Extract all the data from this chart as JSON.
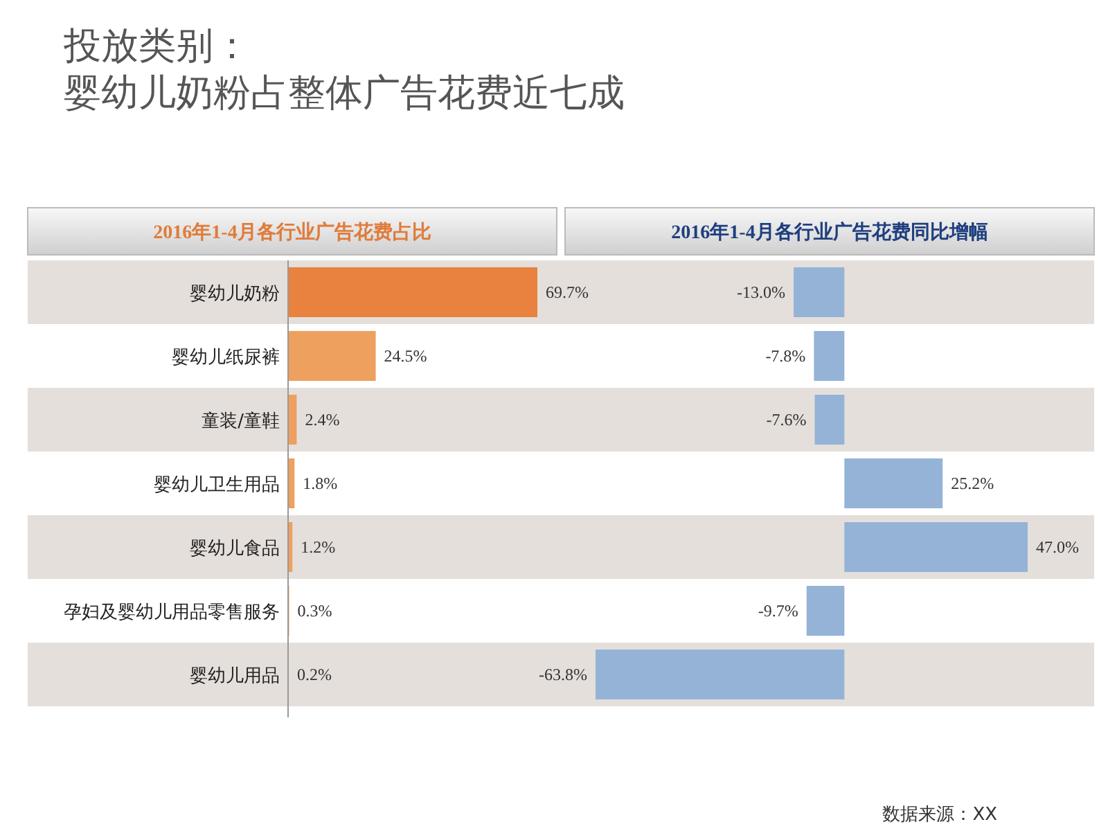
{
  "chart_data": [
    {
      "type": "bar",
      "orientation": "horizontal",
      "title": "2016年1-4月各行业广告花费占比",
      "annotations": [
        "投放类别：",
        "婴幼儿奶粉占整体广告花费近七成"
      ],
      "categories": [
        "婴幼儿奶粉",
        "婴幼儿纸尿裤",
        "童装/童鞋",
        "婴幼儿卫生用品",
        "婴幼儿食品",
        "孕妇及婴幼儿用品零售服务",
        "婴幼儿用品"
      ],
      "values": [
        69.7,
        24.5,
        2.4,
        1.8,
        1.2,
        0.3,
        0.2
      ],
      "value_labels": [
        "69.7%",
        "24.5%",
        "2.4%",
        "1.8%",
        "1.2%",
        "0.3%",
        "0.2%"
      ],
      "colors": [
        "#e8823e",
        "#eea05e",
        "#eea05e",
        "#eea05e",
        "#eea05e",
        "#eea05e",
        "#eea05e"
      ]
    },
    {
      "type": "bar",
      "orientation": "horizontal",
      "title": "2016年1-4月各行业广告花费同比增幅",
      "annotations": [
        "数据来源：XX"
      ],
      "categories": [
        null,
        null,
        null,
        null,
        null,
        null,
        null
      ],
      "values": [
        -13.0,
        -7.8,
        -7.6,
        25.2,
        47.0,
        -9.7,
        -63.8
      ],
      "value_labels": [
        "-13.0%",
        "-7.8%",
        "-7.6%",
        "25.2%",
        "47.0%",
        "-9.7%",
        "-63.8%"
      ],
      "color": "#95b3d7"
    }
  ]
}
